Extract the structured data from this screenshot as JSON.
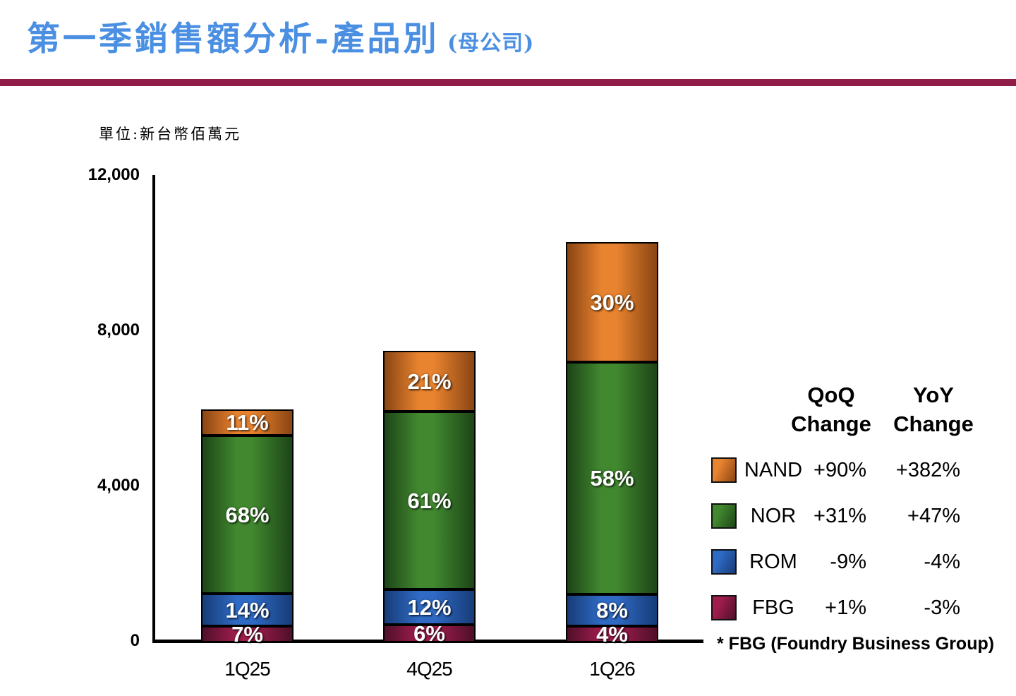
{
  "title": {
    "main": "第一季銷售額分析-產品別",
    "suffix": " (母公司)"
  },
  "unit_label": "單位:新台幣佰萬元",
  "footnote": "* FBG (Foundry Business Group)",
  "colors": {
    "title_blue": "#4a8fe2",
    "divider_maroon": "#901d47",
    "axis_black": "#000000"
  },
  "chart_data": {
    "type": "bar",
    "stacked": true,
    "title": "第一季銷售額分析-產品別 (母公司)",
    "ylabel": "新台幣佰萬元 (NT$ Million)",
    "xlabel": "",
    "grid": false,
    "legend_position": "right",
    "categories": [
      "1Q25",
      "4Q25",
      "1Q26"
    ],
    "y_axis": {
      "min": 0,
      "max": 12000,
      "ticks": [
        {
          "value": 0,
          "label": "0"
        },
        {
          "value": 4000,
          "label": "4,000"
        },
        {
          "value": 8000,
          "label": "8,000"
        },
        {
          "value": 12000,
          "label": "12,000"
        }
      ]
    },
    "totals_estimated": [
      6000,
      7500,
      10300
    ],
    "series": [
      {
        "name": "FBG",
        "percents": [
          7,
          6,
          4
        ],
        "labels": [
          "7%",
          "6%",
          "4%"
        ],
        "color": "#a01d4e",
        "color_dark": "#4f0f29"
      },
      {
        "name": "ROM",
        "percents": [
          14,
          12,
          8
        ],
        "labels": [
          "14%",
          "12%",
          "8%"
        ],
        "color": "#2f6ac4",
        "color_dark": "#173c78"
      },
      {
        "name": "NOR",
        "percents": [
          68,
          61,
          58
        ],
        "labels": [
          "68%",
          "61%",
          "58%"
        ],
        "color": "#41882f",
        "color_dark": "#1d4517"
      },
      {
        "name": "NAND",
        "percents": [
          11,
          21,
          30
        ],
        "labels": [
          "11%",
          "21%",
          "30%"
        ],
        "color": "#e8832f",
        "color_dark": "#8a4513"
      }
    ]
  },
  "legend": {
    "headers": {
      "qoq": [
        "QoQ",
        "Change"
      ],
      "yoy": [
        "YoY",
        "Change"
      ]
    },
    "rows": [
      {
        "name": "NAND",
        "qoq": "+90%",
        "yoy": "+382%"
      },
      {
        "name": "NOR",
        "qoq": "+31%",
        "yoy": "+47%"
      },
      {
        "name": "ROM",
        "qoq": "-9%",
        "yoy": "-4%"
      },
      {
        "name": "FBG",
        "qoq": "+1%",
        "yoy": "-3%"
      }
    ]
  }
}
